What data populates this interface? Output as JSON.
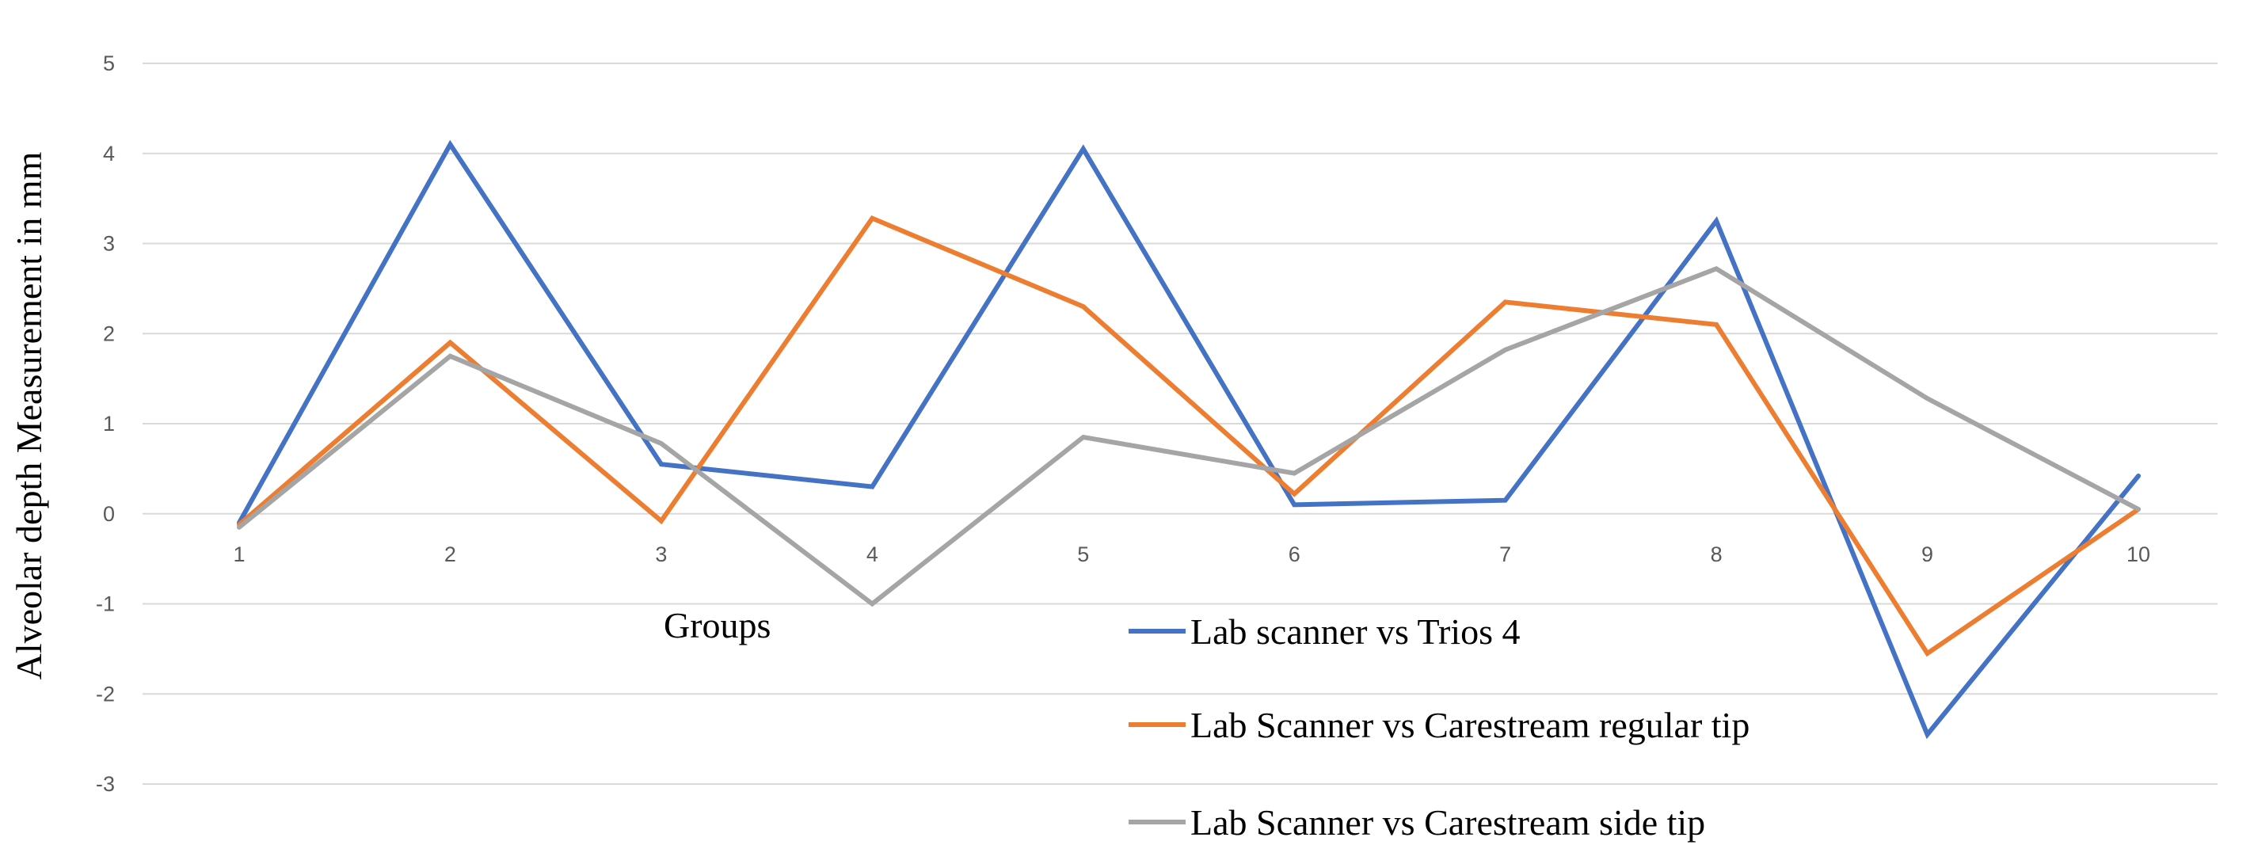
{
  "chart_data": {
    "type": "line",
    "x": [
      1,
      2,
      3,
      4,
      5,
      6,
      7,
      8,
      9,
      10
    ],
    "x_tick_labels": [
      "1",
      "2",
      "3",
      "4",
      "5",
      "6",
      "7",
      "8",
      "9",
      "10"
    ],
    "xlabel": "Groups",
    "ylabel": "Alveolar depth Measurement in mm",
    "ylim": [
      -3,
      5
    ],
    "y_ticks": [
      5,
      4,
      3,
      2,
      1,
      0,
      -1,
      -2,
      -3
    ],
    "grid": true,
    "legend_position": "bottom-right",
    "series": [
      {
        "name": "Lab scanner vs Trios 4",
        "color": "#4472C4",
        "values": [
          -0.1,
          4.1,
          0.55,
          0.3,
          4.05,
          0.1,
          0.15,
          3.25,
          -2.45,
          0.42
        ]
      },
      {
        "name": "Lab Scanner vs Carestream regular tip",
        "color": "#ED7D31",
        "values": [
          -0.12,
          1.9,
          -0.08,
          3.28,
          2.3,
          0.22,
          2.35,
          2.1,
          -1.55,
          0.05
        ]
      },
      {
        "name": "Lab Scanner vs Carestream side tip",
        "color": "#A5A5A5",
        "values": [
          -0.15,
          1.75,
          0.78,
          -1.0,
          0.85,
          0.45,
          1.82,
          2.72,
          1.28,
          0.05
        ]
      }
    ]
  }
}
